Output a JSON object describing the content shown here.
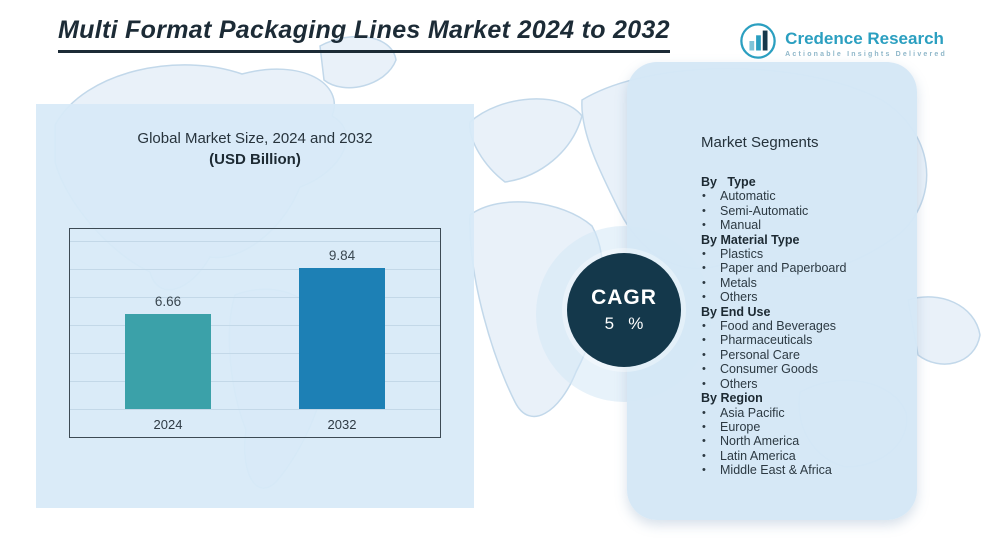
{
  "page": {
    "title": "Multi Format Packaging Lines Market 2024 to 2032"
  },
  "logo": {
    "name": "Credence Research",
    "tagline": "Actionable Insights Delivered"
  },
  "chart_panel": {
    "title": "Global Market Size, 2024 and 2032",
    "subtitle": "(USD Billion)"
  },
  "cagr": {
    "label": "CAGR",
    "value": "5   %"
  },
  "segments": {
    "title": "Market Segments",
    "groups": [
      {
        "heading": "By   Type",
        "items": [
          "Automatic",
          "Semi-Automatic",
          "Manual"
        ]
      },
      {
        "heading": "By Material Type",
        "items": [
          "Plastics",
          "Paper and Paperboard",
          "Metals",
          "Others"
        ]
      },
      {
        "heading": "By End Use",
        "items": [
          "Food and Beverages",
          "Pharmaceuticals",
          "Personal Care",
          "Consumer Goods",
          "Others"
        ]
      },
      {
        "heading": "By Region",
        "items": [
          "Asia Pacific",
          "Europe",
          "North America",
          "Latin America",
          "Middle East & Africa"
        ]
      }
    ]
  },
  "chart_data": {
    "type": "bar",
    "title": "Global Market Size, 2024 and 2032 (USD Billion)",
    "categories": [
      "2024",
      "2032"
    ],
    "values": [
      6.66,
      9.84
    ],
    "value_labels": [
      "6.66",
      "9.84"
    ],
    "xlabel": "",
    "ylabel": "USD Billion",
    "ylim": [
      0,
      12
    ],
    "grid": true,
    "legend": false,
    "bar_colors": [
      "#3ba1a9",
      "#1d80b5"
    ]
  },
  "colors": {
    "accent_teal": "#3ba1a9",
    "accent_blue": "#1d80b5",
    "dark_navy": "#14384b",
    "panel_blue": "#d7e9f7",
    "logo_teal": "#2b9fc0"
  }
}
